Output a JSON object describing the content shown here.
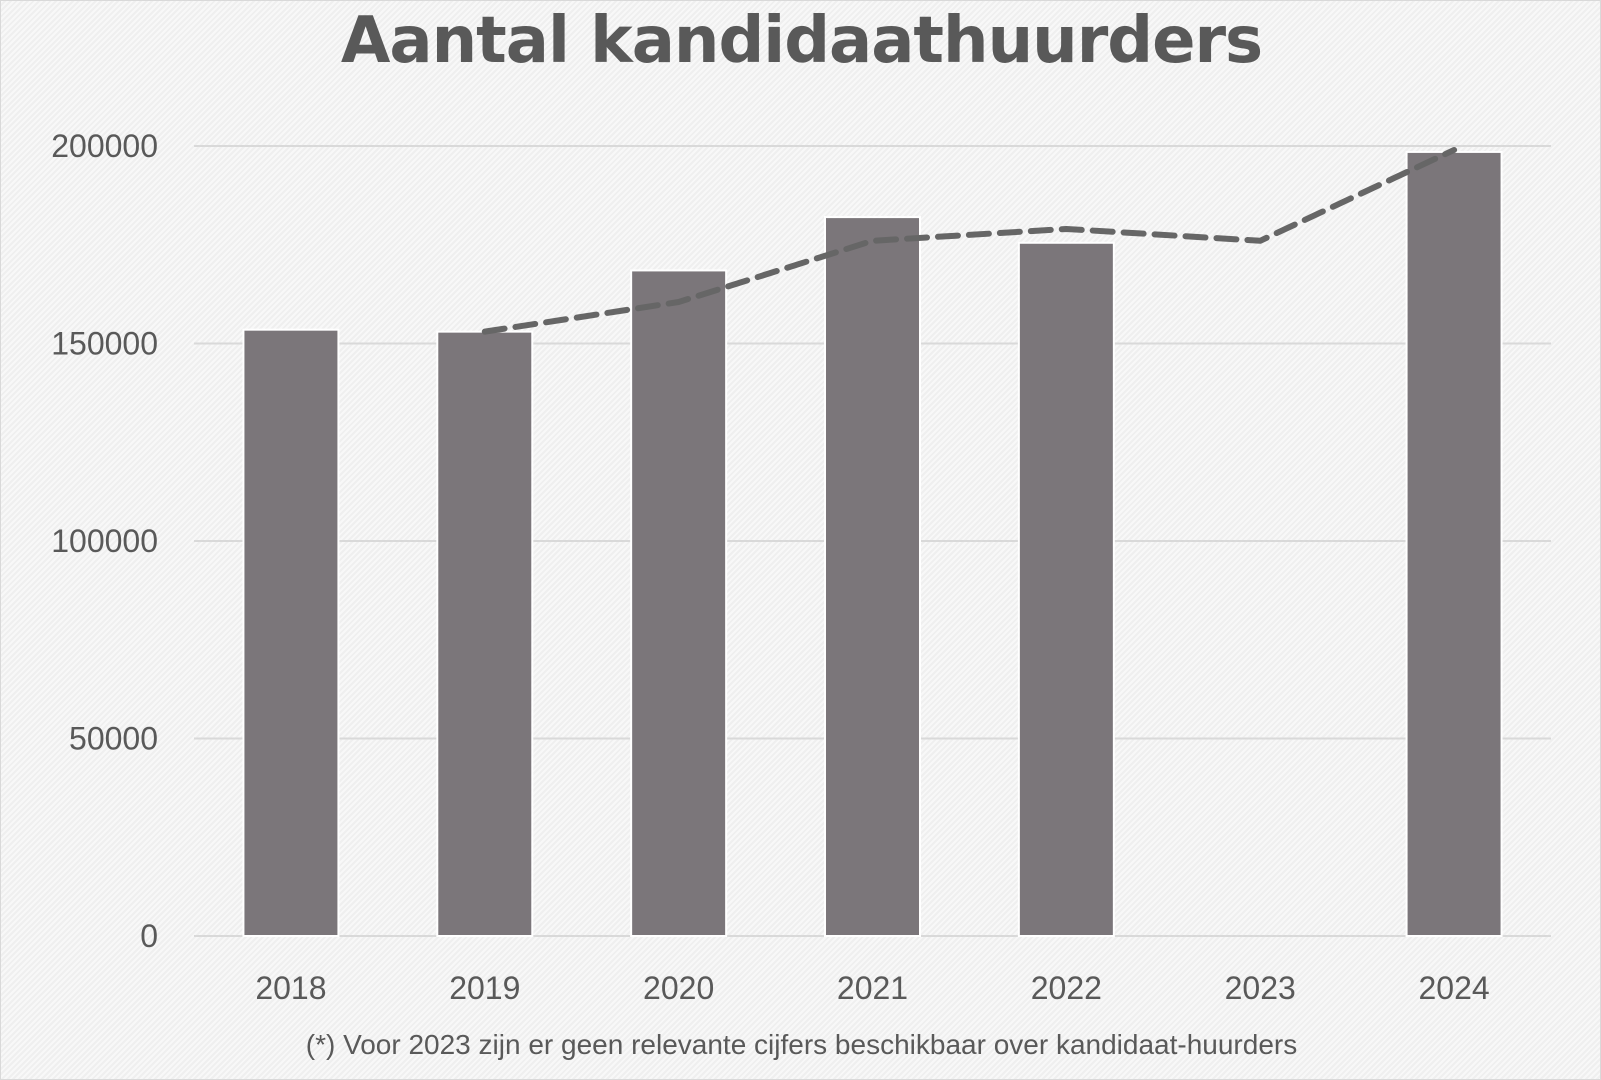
{
  "chart_data": {
    "type": "bar",
    "title": "Aantal kandidaathuurders",
    "footnote": "(*) Voor 2023 zijn er geen relevante cijfers beschikbaar over kandidaat-huurders",
    "categories": [
      "2018",
      "2019",
      "2020",
      "2021",
      "2022",
      "2023",
      "2024"
    ],
    "values": [
      153500,
      153000,
      168500,
      182000,
      175500,
      null,
      198500
    ],
    "trend_line": {
      "style": "dashed",
      "values": [
        null,
        153000,
        160500,
        176000,
        179000,
        176000,
        199000
      ]
    },
    "ylim": [
      0,
      200000
    ],
    "yticks": [
      "0",
      "50000",
      "100000",
      "150000",
      "200000"
    ],
    "xlabel": "",
    "ylabel": "",
    "grid": true,
    "legend": "none",
    "colors": {
      "bar": "#7b767a",
      "trend": "#666666",
      "grid": "#d9d9d9",
      "text": "#595959"
    }
  }
}
